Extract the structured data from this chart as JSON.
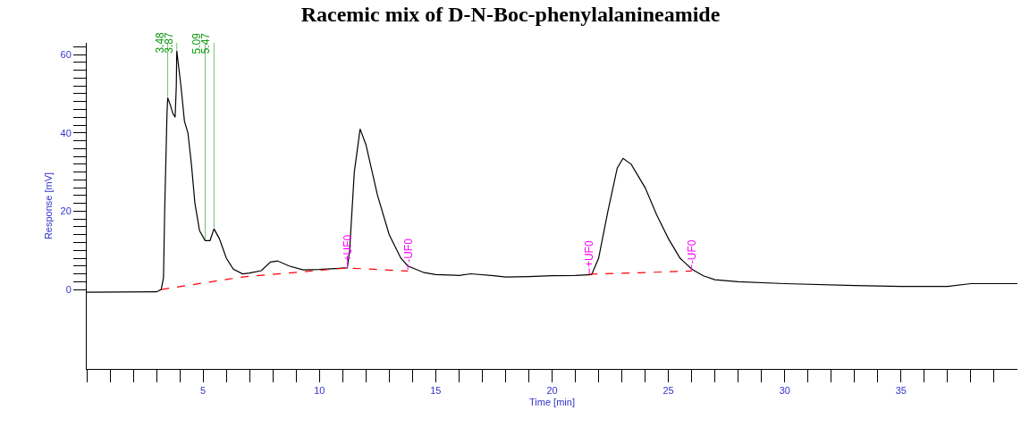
{
  "chart_data": {
    "type": "line",
    "title": "Racemic mix of D-N-Boc-phenylalanineamide",
    "xlabel": "Time [min]",
    "ylabel": "Response [mV]",
    "series": [
      {
        "color": "#000000",
        "line_style": "solid",
        "x": [
          0,
          3.0,
          3.2,
          3.3,
          3.35,
          3.45,
          3.48,
          3.6,
          3.7,
          3.8,
          3.85,
          3.87,
          4.05,
          4.2,
          4.35,
          4.5,
          4.65,
          4.85,
          5.09,
          5.3,
          5.47,
          5.7,
          6.0,
          6.3,
          6.7,
          7.0,
          7.5,
          7.9,
          8.2,
          8.7,
          9.3,
          10,
          11.2,
          11.3,
          11.5,
          11.75,
          12,
          12.5,
          13,
          13.5,
          13.8,
          14.5,
          15,
          16,
          16.5,
          17.5,
          18,
          19,
          20,
          21,
          21.7,
          22,
          22.4,
          22.8,
          23.05,
          23.4,
          24,
          24.5,
          25,
          25.5,
          26,
          26.5,
          27,
          28,
          30,
          33,
          35,
          37,
          38,
          40
        ],
        "values": [
          -0.7,
          -0.6,
          0,
          3,
          20,
          45,
          49,
          47,
          45,
          44,
          52,
          61,
          52,
          43,
          40,
          32,
          22,
          15,
          12.5,
          12.5,
          15.5,
          13,
          8,
          5.2,
          4,
          4.2,
          4.8,
          7,
          7.3,
          6,
          5,
          5.1,
          5.5,
          10,
          30,
          41,
          37,
          24,
          14,
          8,
          6,
          4.3,
          3.8,
          3.6,
          4,
          3.5,
          3.2,
          3.3,
          3.5,
          3.6,
          3.8,
          8,
          20,
          31,
          33.5,
          32,
          26,
          19,
          13,
          8,
          5.2,
          3.5,
          2.5,
          2,
          1.5,
          1,
          0.8,
          0.8,
          1.5,
          1.5
        ]
      },
      {
        "color": "#ff0000",
        "line_style": "dashed",
        "x": [
          3.2,
          6.7,
          11.2,
          13.8,
          17,
          21.6,
          26.0
        ],
        "values": [
          0,
          3.2,
          5.5,
          4.7,
          null,
          3.9,
          4.7
        ]
      }
    ],
    "xlim": [
      0,
      40
    ],
    "xticks": [
      {
        "value": 0,
        "label": null
      },
      {
        "value": 1,
        "label": null
      },
      {
        "value": 2,
        "label": null
      },
      {
        "value": 3,
        "label": null
      },
      {
        "value": 4,
        "label": null
      },
      5,
      {
        "value": 6,
        "label": null
      },
      {
        "value": 7,
        "label": null
      },
      {
        "value": 8,
        "label": null
      },
      {
        "value": 9,
        "label": null
      },
      10,
      {
        "value": 11,
        "label": null
      },
      {
        "value": 12,
        "label": null
      },
      {
        "value": 13,
        "label": null
      },
      {
        "value": 14,
        "label": null
      },
      15,
      {
        "value": 16,
        "label": null
      },
      {
        "value": 17,
        "label": null
      },
      {
        "value": 18,
        "label": null
      },
      {
        "value": 19,
        "label": null
      },
      20,
      {
        "value": 21,
        "label": null
      },
      {
        "value": 22,
        "label": null
      },
      {
        "value": 23,
        "label": null
      },
      {
        "value": 24,
        "label": null
      },
      25,
      {
        "value": 26,
        "label": null
      },
      {
        "value": 27,
        "label": null
      },
      {
        "value": 28,
        "label": null
      },
      {
        "value": 29,
        "label": null
      },
      30,
      {
        "value": 31,
        "label": null
      },
      {
        "value": 32,
        "label": null
      },
      {
        "value": 33,
        "label": null
      },
      {
        "value": 34,
        "label": null
      },
      35,
      {
        "value": 36,
        "label": null
      },
      {
        "value": 37,
        "label": null
      },
      {
        "value": 38,
        "label": null
      },
      {
        "value": 39,
        "label": null
      }
    ],
    "ylim": [
      -20.3,
      63
    ],
    "yticks": [
      0,
      20,
      40,
      60,
      {
        "value": 2,
        "label": null
      },
      {
        "value": 4,
        "label": null
      },
      {
        "value": 6,
        "label": null
      },
      {
        "value": 8,
        "label": null
      },
      {
        "value": 10,
        "label": null
      },
      {
        "value": 12,
        "label": null
      },
      {
        "value": 14,
        "label": null
      },
      {
        "value": 16,
        "label": null
      },
      {
        "value": 18,
        "label": null
      },
      {
        "value": 22,
        "label": null
      },
      {
        "value": 24,
        "label": null
      },
      {
        "value": 26,
        "label": null
      },
      {
        "value": 28,
        "label": null
      },
      {
        "value": 30,
        "label": null
      },
      {
        "value": 32,
        "label": null
      },
      {
        "value": 34,
        "label": null
      },
      {
        "value": 36,
        "label": null
      },
      {
        "value": 38,
        "label": null
      },
      {
        "value": 42,
        "label": null
      },
      {
        "value": 44,
        "label": null
      },
      {
        "value": 46,
        "label": null
      },
      {
        "value": 48,
        "label": null
      },
      {
        "value": 50,
        "label": null
      },
      {
        "value": 52,
        "label": null
      },
      {
        "value": 54,
        "label": null
      },
      {
        "value": 56,
        "label": null
      },
      {
        "value": 58,
        "label": null
      },
      {
        "value": 62,
        "label": null
      }
    ],
    "annotations": [
      {
        "text": "3.48",
        "x": 3.48,
        "y": 49
      },
      {
        "text": "3.87",
        "x": 3.87,
        "y": 61
      },
      {
        "text": "5.09",
        "x": 5.09,
        "y": 12.5
      },
      {
        "text": "5.47",
        "x": 5.47,
        "y": 15.5
      },
      {
        "text": "+UF0",
        "x": 11.2,
        "y": 5.5
      },
      {
        "text": "-UF0",
        "x": 13.8,
        "y": 5.0
      },
      {
        "text": "+UF0",
        "x": 21.6,
        "y": 3.9
      },
      {
        "text": "-UF0",
        "x": 26.0,
        "y": 4.8
      }
    ],
    "grid": false,
    "marker": "none"
  }
}
